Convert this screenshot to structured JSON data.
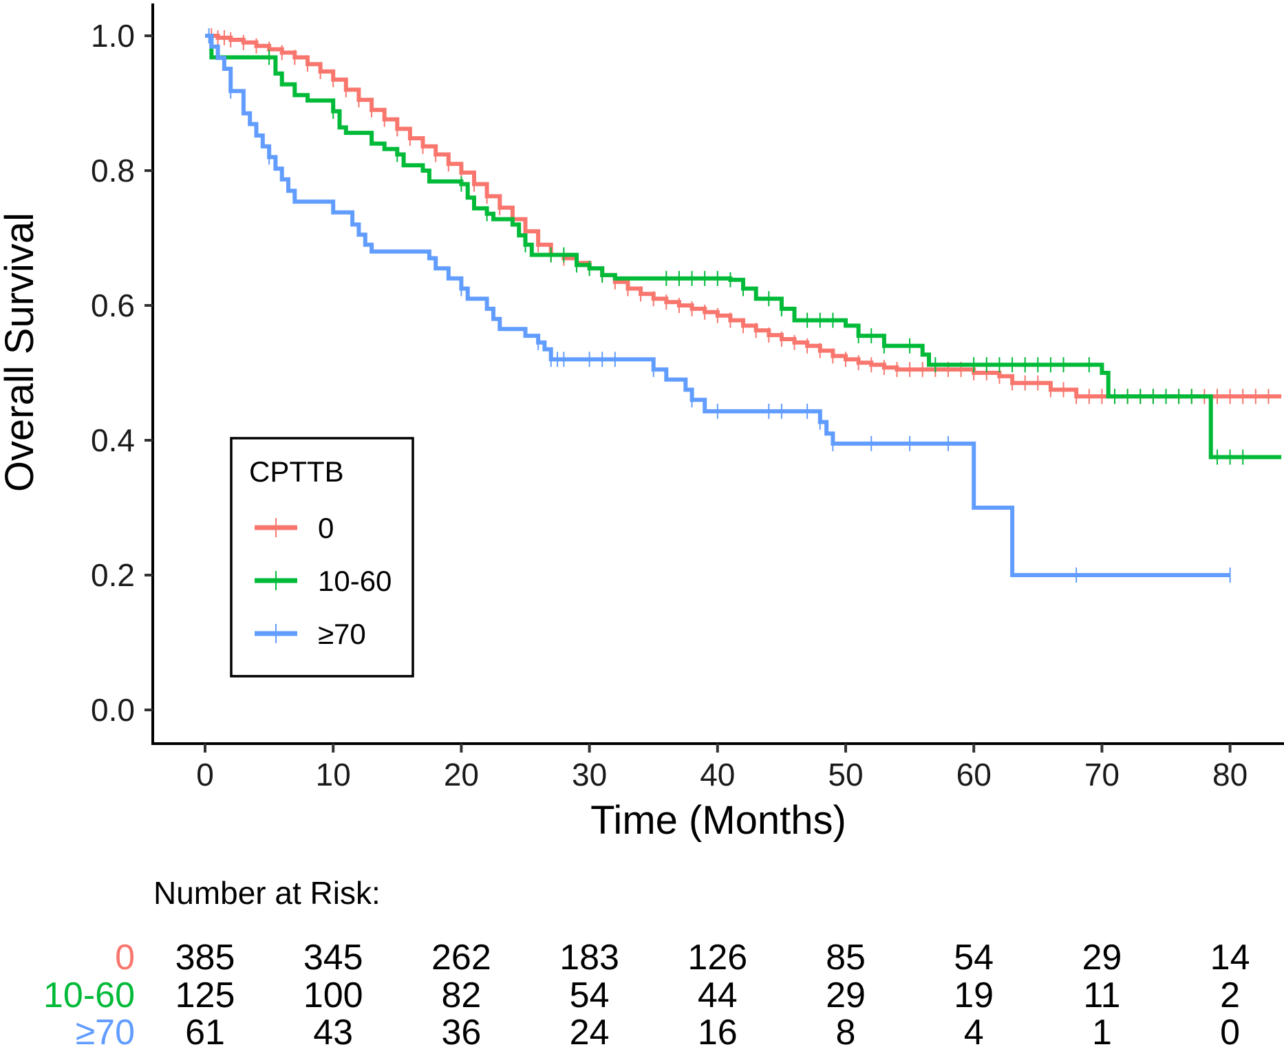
{
  "chart_data": {
    "type": "line",
    "subtype": "kaplan-meier",
    "xlabel": "Time (Months)",
    "ylabel": "Overall Survival",
    "xlim": [
      -4,
      84
    ],
    "ylim": [
      -0.05,
      1.05
    ],
    "xticks": [
      0,
      10,
      20,
      30,
      40,
      50,
      60,
      70,
      80
    ],
    "yticks": [
      0.0,
      0.2,
      0.4,
      0.6,
      0.8,
      1.0
    ],
    "ytick_labels": [
      "0.0",
      "0.2",
      "0.4",
      "0.6",
      "0.8",
      "1.0"
    ],
    "legend": {
      "title": "CPTTB",
      "placement": "left-middle",
      "entries": [
        "0",
        "10-60",
        "≥70"
      ]
    },
    "series": [
      {
        "name": "0",
        "color": "#F8766D",
        "steps": [
          [
            0,
            1.0
          ],
          [
            1,
            0.997
          ],
          [
            2,
            0.994
          ],
          [
            3,
            0.99
          ],
          [
            4,
            0.985
          ],
          [
            5,
            0.98
          ],
          [
            6,
            0.975
          ],
          [
            7,
            0.968
          ],
          [
            8,
            0.958
          ],
          [
            9,
            0.947
          ],
          [
            10,
            0.935
          ],
          [
            11,
            0.92
          ],
          [
            12,
            0.905
          ],
          [
            13,
            0.89
          ],
          [
            14,
            0.876
          ],
          [
            15,
            0.862
          ],
          [
            16,
            0.848
          ],
          [
            17,
            0.836
          ],
          [
            18,
            0.824
          ],
          [
            19,
            0.81
          ],
          [
            20,
            0.797
          ],
          [
            21,
            0.78
          ],
          [
            22,
            0.762
          ],
          [
            23,
            0.745
          ],
          [
            24,
            0.728
          ],
          [
            25,
            0.71
          ],
          [
            26,
            0.69
          ],
          [
            27,
            0.675
          ],
          [
            28,
            0.67
          ],
          [
            29,
            0.663
          ],
          [
            30,
            0.655
          ],
          [
            31,
            0.645
          ],
          [
            32,
            0.635
          ],
          [
            33,
            0.625
          ],
          [
            34,
            0.617
          ],
          [
            35,
            0.61
          ],
          [
            36,
            0.605
          ],
          [
            37,
            0.6
          ],
          [
            38,
            0.595
          ],
          [
            39,
            0.59
          ],
          [
            40,
            0.585
          ],
          [
            41,
            0.578
          ],
          [
            42,
            0.57
          ],
          [
            43,
            0.563
          ],
          [
            44,
            0.556
          ],
          [
            45,
            0.55
          ],
          [
            46,
            0.545
          ],
          [
            47,
            0.54
          ],
          [
            48,
            0.533
          ],
          [
            49,
            0.525
          ],
          [
            50,
            0.52
          ],
          [
            51,
            0.515
          ],
          [
            52,
            0.512
          ],
          [
            53,
            0.508
          ],
          [
            54,
            0.505
          ],
          [
            60,
            0.5
          ],
          [
            62,
            0.495
          ],
          [
            63,
            0.485
          ],
          [
            66,
            0.475
          ],
          [
            68,
            0.465
          ],
          [
            84,
            0.465
          ]
        ],
        "censor_times": [
          0.5,
          1,
          1.5,
          2,
          3,
          4,
          5,
          6,
          7,
          8,
          9,
          10,
          11,
          12,
          13,
          14,
          15,
          16,
          17,
          18,
          19,
          20,
          21,
          22,
          23,
          24,
          25,
          26,
          27,
          28,
          29,
          30,
          31,
          32,
          33,
          34,
          35,
          36,
          37,
          38,
          39,
          40,
          41,
          42,
          43,
          44,
          45,
          46,
          47,
          48,
          49,
          50,
          51,
          52,
          53,
          54,
          55,
          56,
          57,
          58,
          59,
          60,
          61,
          62,
          63,
          64,
          65,
          66,
          67,
          68,
          69,
          70,
          71,
          72,
          73,
          74,
          75,
          76,
          77,
          78,
          79,
          80,
          81,
          82,
          83
        ]
      },
      {
        "name": "10-60",
        "color": "#00BA38",
        "steps": [
          [
            0,
            1.0
          ],
          [
            0.5,
            0.968
          ],
          [
            5,
            0.968
          ],
          [
            5.5,
            0.944
          ],
          [
            6,
            0.928
          ],
          [
            7,
            0.912
          ],
          [
            8,
            0.904
          ],
          [
            10,
            0.888
          ],
          [
            10.5,
            0.864
          ],
          [
            11,
            0.856
          ],
          [
            13,
            0.84
          ],
          [
            14,
            0.832
          ],
          [
            15,
            0.824
          ],
          [
            15.5,
            0.808
          ],
          [
            17,
            0.8
          ],
          [
            17.5,
            0.784
          ],
          [
            20,
            0.78
          ],
          [
            20.5,
            0.76
          ],
          [
            21,
            0.744
          ],
          [
            22,
            0.736
          ],
          [
            22.5,
            0.728
          ],
          [
            24,
            0.72
          ],
          [
            24.5,
            0.704
          ],
          [
            25,
            0.69
          ],
          [
            25.5,
            0.675
          ],
          [
            29,
            0.66
          ],
          [
            30,
            0.655
          ],
          [
            31,
            0.645
          ],
          [
            32,
            0.64
          ],
          [
            41,
            0.638
          ],
          [
            42,
            0.625
          ],
          [
            43,
            0.61
          ],
          [
            45,
            0.595
          ],
          [
            46,
            0.578
          ],
          [
            50,
            0.57
          ],
          [
            51,
            0.555
          ],
          [
            53,
            0.54
          ],
          [
            56,
            0.527
          ],
          [
            56.5,
            0.512
          ],
          [
            70,
            0.5
          ],
          [
            70.5,
            0.465
          ],
          [
            78,
            0.465
          ],
          [
            78.5,
            0.375
          ],
          [
            84,
            0.375
          ]
        ],
        "censor_times": [
          5,
          10,
          15,
          20,
          22,
          25,
          27,
          28,
          29,
          30,
          31,
          36,
          37,
          38,
          39,
          40,
          41,
          42,
          44,
          45,
          47,
          48,
          49,
          51,
          52,
          53,
          55,
          57,
          60,
          61,
          62,
          63,
          64,
          65,
          66,
          67,
          69,
          71,
          72,
          73,
          74,
          75,
          76,
          77,
          79,
          80,
          81
        ]
      },
      {
        "name": "≥70",
        "color": "#619CFF",
        "steps": [
          [
            0,
            1.0
          ],
          [
            0.5,
            0.984
          ],
          [
            1,
            0.967
          ],
          [
            1.5,
            0.951
          ],
          [
            2,
            0.918
          ],
          [
            3,
            0.885
          ],
          [
            3.5,
            0.869
          ],
          [
            4,
            0.852
          ],
          [
            4.5,
            0.836
          ],
          [
            5,
            0.82
          ],
          [
            5.5,
            0.803
          ],
          [
            6,
            0.787
          ],
          [
            6.5,
            0.77
          ],
          [
            7,
            0.754
          ],
          [
            10,
            0.738
          ],
          [
            11.5,
            0.72
          ],
          [
            12,
            0.705
          ],
          [
            12.5,
            0.69
          ],
          [
            13,
            0.68
          ],
          [
            17.5,
            0.67
          ],
          [
            18,
            0.655
          ],
          [
            19,
            0.64
          ],
          [
            20,
            0.625
          ],
          [
            20.5,
            0.61
          ],
          [
            22,
            0.595
          ],
          [
            22.5,
            0.58
          ],
          [
            23,
            0.565
          ],
          [
            25,
            0.555
          ],
          [
            26,
            0.545
          ],
          [
            26.5,
            0.535
          ],
          [
            27,
            0.52
          ],
          [
            35,
            0.505
          ],
          [
            36,
            0.49
          ],
          [
            37.5,
            0.475
          ],
          [
            38,
            0.46
          ],
          [
            39,
            0.443
          ],
          [
            48,
            0.427
          ],
          [
            48.5,
            0.41
          ],
          [
            49,
            0.395
          ],
          [
            60,
            0.3
          ],
          [
            63,
            0.2
          ],
          [
            80,
            0.2
          ]
        ],
        "censor_times": [
          0.3,
          2,
          5,
          20,
          26,
          27,
          27.5,
          28,
          30,
          31,
          32,
          35,
          38,
          40,
          44,
          45,
          47,
          48,
          49,
          52,
          55,
          58,
          68,
          80
        ]
      }
    ],
    "risk_table": {
      "title": "Number at Risk:",
      "times": [
        0,
        10,
        20,
        30,
        40,
        50,
        60,
        70,
        80
      ],
      "rows": [
        {
          "group": "0",
          "color": "#F8766D",
          "values": [
            "385",
            "345",
            "262",
            "183",
            "126",
            "85",
            "54",
            "29",
            "14"
          ]
        },
        {
          "group": "10-60",
          "color": "#00BA38",
          "values": [
            "125",
            "100",
            "82",
            "54",
            "44",
            "29",
            "19",
            "11",
            "2"
          ]
        },
        {
          "group": "≥70",
          "color": "#619CFF",
          "values": [
            "61",
            "43",
            "36",
            "24",
            "16",
            "8",
            "4",
            "1",
            "0"
          ]
        }
      ]
    }
  }
}
